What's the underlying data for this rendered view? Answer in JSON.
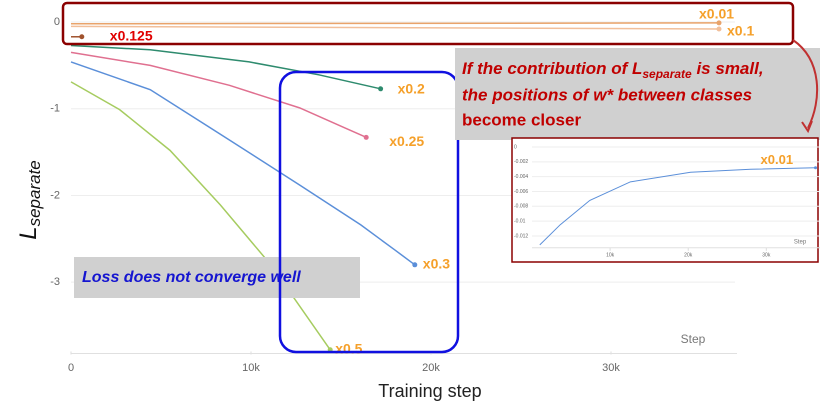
{
  "chart_data": [
    {
      "type": "line",
      "xlabel": "Training step",
      "ylabel": {
        "symbol": "L",
        "subscript": "separate"
      },
      "xlim": [
        0,
        37000
      ],
      "ylim": [
        -3.8,
        0.2
      ],
      "xticks": [
        0,
        {
          "value": 10000,
          "label": "10k"
        },
        {
          "value": 20000,
          "label": "20k"
        },
        {
          "value": 30000,
          "label": "30k"
        }
      ],
      "yticks": [
        0,
        -1,
        -2,
        -3
      ],
      "grid": true,
      "axis_note": "Step",
      "series": [
        {
          "name": "x0.01",
          "color": "#e9a36a",
          "label_color": "#f5a02a",
          "x": [
            0,
            36000
          ],
          "values": [
            -0.02,
            -0.01
          ]
        },
        {
          "name": "x0.1",
          "color": "#f2bf9a",
          "label_color": "#f5a02a",
          "x": [
            0,
            36000
          ],
          "values": [
            -0.05,
            -0.08
          ]
        },
        {
          "name": "x0.125",
          "color": "#a0522d",
          "label_color": "#e00000",
          "x": [
            0,
            600
          ],
          "values": [
            -0.17,
            -0.17
          ]
        },
        {
          "name": "x0.2",
          "color": "#2e8b6e",
          "label_color": "#f5a02a",
          "x": [
            0,
            4400,
            9900,
            13800,
            17200
          ],
          "values": [
            -0.27,
            -0.32,
            -0.46,
            -0.61,
            -0.77
          ]
        },
        {
          "name": "x0.25",
          "color": "#e07090",
          "label_color": "#f5a02a",
          "x": [
            0,
            4400,
            8800,
            12700,
            16400
          ],
          "values": [
            -0.35,
            -0.5,
            -0.73,
            -0.99,
            -1.33
          ]
        },
        {
          "name": "x0.3",
          "color": "#5b8fd9",
          "label_color": "#f5a02a",
          "x": [
            0,
            4400,
            8800,
            12700,
            16100,
            18000,
            19100
          ],
          "values": [
            -0.46,
            -0.78,
            -1.36,
            -1.88,
            -2.34,
            -2.63,
            -2.8
          ]
        },
        {
          "name": "x0.5",
          "color": "#a6cc60",
          "label_color": "#f5a02a",
          "x": [
            0,
            2700,
            5500,
            8300,
            11100,
            14400
          ],
          "values": [
            -0.69,
            -1.01,
            -1.48,
            -2.11,
            -2.8,
            -3.78
          ]
        }
      ],
      "annotation": "Loss does not converge well",
      "callout": {
        "prefix": "If the contribution of ",
        "symbol": "L",
        "subscript": "separate",
        "suffix": " is small,",
        "line2": "the positions of w* between classes",
        "line3": "become closer"
      }
    },
    {
      "type": "line",
      "xlim": [
        0,
        37000
      ],
      "ylim": [
        -0.0136,
        0.0005
      ],
      "xticks": [
        {
          "value": 10000,
          "label": "10k"
        },
        {
          "value": 20000,
          "label": "20k"
        },
        {
          "value": 30000,
          "label": "30k"
        }
      ],
      "yticks": [
        0,
        -0.002,
        -0.004,
        -0.006,
        -0.008,
        -0.01,
        -0.012
      ],
      "grid": true,
      "axis_note": "Step",
      "series": [
        {
          "name": "x0.01",
          "color": "#5b8fd9",
          "label_color": "#f5a02a",
          "x": [
            1000,
            3600,
            7400,
            12600,
            20300,
            28000,
            36300
          ],
          "values": [
            -0.0132,
            -0.0105,
            -0.0072,
            -0.0047,
            -0.0034,
            -0.003,
            -0.0028
          ]
        }
      ]
    }
  ]
}
